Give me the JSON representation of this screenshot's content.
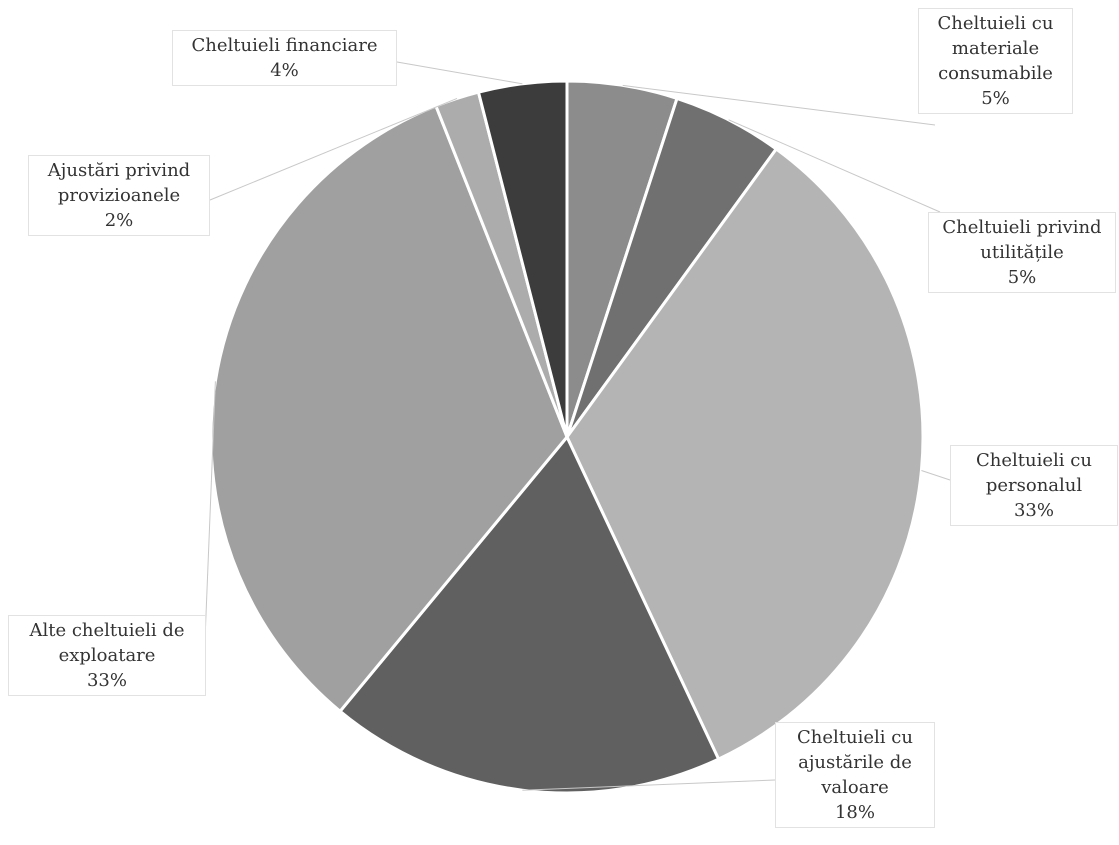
{
  "chart_data": {
    "type": "pie",
    "categories": [
      "Cheltuieli cu materiale consumabile",
      "Cheltuieli privind utilitățile",
      "Cheltuieli cu personalul",
      "Cheltuieli cu ajustările de valoare",
      "Alte cheltuieli de exploatare",
      "Ajustări privind provizioanele",
      "Cheltuieli financiare"
    ],
    "values": [
      5,
      5,
      33,
      18,
      33,
      2,
      4
    ],
    "value_labels": [
      "5%",
      "5%",
      "33%",
      "18%",
      "33%",
      "2%",
      "4%"
    ],
    "colors": [
      "#8c8c8c",
      "#707070",
      "#b4b4b4",
      "#606060",
      "#a0a0a0",
      "#acacac",
      "#3c3c3c"
    ]
  }
}
